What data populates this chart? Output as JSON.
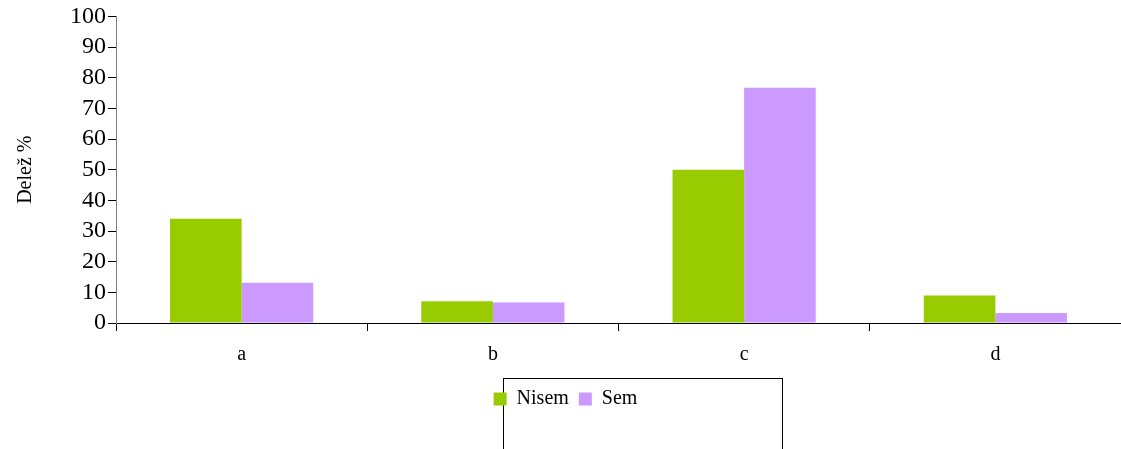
{
  "chart_data": {
    "type": "bar",
    "ylabel": "Delež %",
    "categories": [
      "a",
      "b",
      "c",
      "d"
    ],
    "series": [
      {
        "name": "Nisem",
        "color": "#99cc00",
        "values": [
          34,
          7.1,
          50,
          9
        ]
      },
      {
        "name": "Sem",
        "color": "#cc99ff",
        "values": [
          13.1,
          6.7,
          76.7,
          3.3
        ]
      }
    ],
    "ylim": [
      0,
      100
    ],
    "yticks": [
      0,
      10,
      20,
      30,
      40,
      50,
      60,
      70,
      80,
      90,
      100
    ],
    "grid": false,
    "legend": "bottom"
  }
}
